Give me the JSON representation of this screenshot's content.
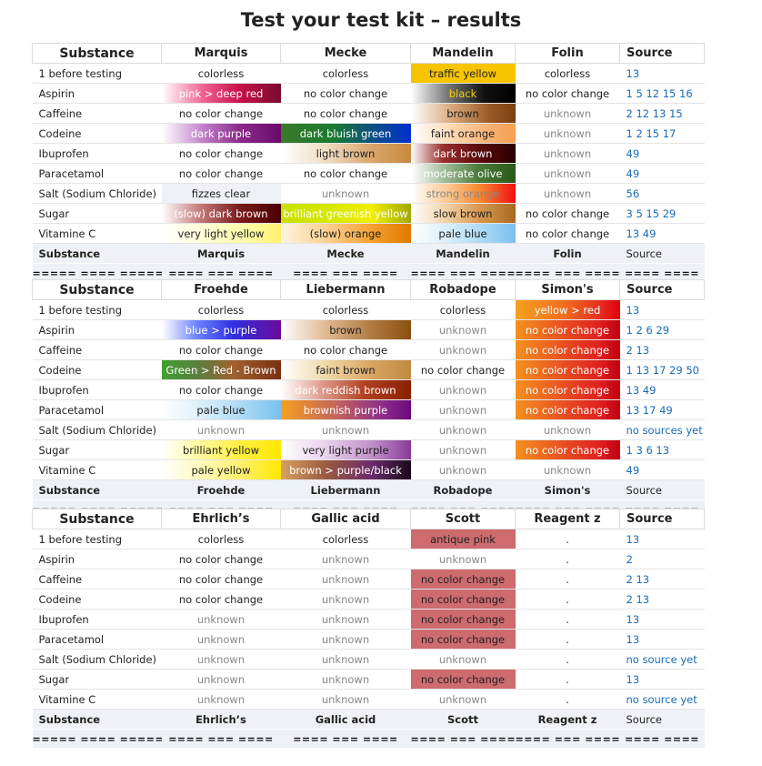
{
  "title": "Test your test kit – results",
  "substances": [
    "1 before testing",
    "Aspirin",
    "Caffeine",
    "Codeine",
    "Ibuprofen",
    "Paracetamol",
    "Salt (Sodium Chloride)",
    "Sugar",
    "Vitamine C"
  ],
  "tables": [
    {
      "headers": [
        "Substance",
        "Marquis",
        "Mecke",
        "Mandelin",
        "Folin",
        "Source"
      ],
      "footer": [
        "Substance",
        "Marquis",
        "Mecke",
        "Mandelin",
        "Folin",
        "Source"
      ],
      "separator": [
        "===== ==== =====",
        "==== === ====",
        "==== === ====",
        "==== === ====",
        "==== === ====",
        "==== ===="
      ],
      "rows": [
        [
          "1 before testing",
          "colorless",
          "colorless",
          "traffic yellow",
          "colorless",
          "13"
        ],
        [
          "Aspirin",
          "pink > deep red",
          "no color change",
          "black",
          "no color change",
          "1 5 12 15 16"
        ],
        [
          "Caffeine",
          "no color change",
          "no color change",
          "brown",
          "unknown",
          "2 12 13 15"
        ],
        [
          "Codeine",
          "dark purple",
          "dark bluish green",
          "faint orange",
          "unknown",
          "1 2 15 17"
        ],
        [
          "Ibuprofen",
          "no color change",
          "light brown",
          "dark brown",
          "unknown",
          "49"
        ],
        [
          "Paracetamol",
          "no color change",
          "no color change",
          "moderate olive",
          "unknown",
          "49"
        ],
        [
          "Salt (Sodium Chloride)",
          "fizzes clear",
          "unknown",
          "strong orange",
          "unknown",
          "56"
        ],
        [
          "Sugar",
          "(slow) dark brown",
          "brilliant greenish yellow",
          "slow brown",
          "no color change",
          "3 5 15 29"
        ],
        [
          "Vitamine C",
          "very light yellow",
          "(slow) orange",
          "pale blue",
          "no color change",
          "13 49"
        ]
      ]
    },
    {
      "headers": [
        "Substance",
        "Froehde",
        "Liebermann",
        "Robadope",
        "Simon's",
        "Source"
      ],
      "footer": [
        "Substance",
        "Froehde",
        "Liebermann",
        "Robadope",
        "Simon's",
        "Source"
      ],
      "separator": [
        "===== ==== =====",
        "==== === ====",
        "==== === ====",
        "==== === ====",
        "==== === ====",
        "==== ===="
      ],
      "rows": [
        [
          "1 before testing",
          "colorless",
          "colorless",
          "colorless",
          "yellow > red",
          "13"
        ],
        [
          "Aspirin",
          "blue > purple",
          "brown",
          "unknown",
          "no color change",
          "1 2 6 29"
        ],
        [
          "Caffeine",
          "no color change",
          "no color change",
          "unknown",
          "no color change",
          "2 13"
        ],
        [
          "Codeine",
          "Green > Red - Brown",
          "faint brown",
          "no color change",
          "no color change",
          "1 13 17 29 50"
        ],
        [
          "Ibuprofen",
          "no color change",
          "dark reddish brown",
          "unknown",
          "no color change",
          "13 49"
        ],
        [
          "Paracetamol",
          "pale blue",
          "brownish purple",
          "unknown",
          "no color change",
          "13 17 49"
        ],
        [
          "Salt (Sodium Chloride)",
          "unknown",
          "unknown",
          "unknown",
          "unknown",
          "no sources yet"
        ],
        [
          "Sugar",
          "brilliant yellow",
          "very light purple",
          "unknown",
          "no color change",
          "1 3 6 13"
        ],
        [
          "Vitamine C",
          "pale yellow",
          "brown > purple/black",
          "unknown",
          "unknown",
          "49"
        ]
      ]
    },
    {
      "headers": [
        "Substance",
        "Ehrlich’s",
        "Gallic acid",
        "Scott",
        "Reagent z",
        "Source"
      ],
      "footer": [
        "Substance",
        "Ehrlich’s",
        "Gallic acid",
        "Scott",
        "Reagent z",
        "Source"
      ],
      "separator": [
        "===== ==== =====",
        "==== === ====",
        "==== === ====",
        "==== === ====",
        "==== === ====",
        "==== ===="
      ],
      "rows": [
        [
          "1 before testing",
          "colorless",
          "colorless",
          "antique pink",
          ".",
          "13"
        ],
        [
          "Aspirin",
          "no color change",
          "unknown",
          "unknown",
          ".",
          "2"
        ],
        [
          "Caffeine",
          "no color change",
          "unknown",
          "no color change",
          ".",
          "2 13"
        ],
        [
          "Codeine",
          "no color change",
          "unknown",
          "no color change",
          ".",
          "2 13"
        ],
        [
          "Ibuprofen",
          "unknown",
          "unknown",
          "no color change",
          ".",
          "13"
        ],
        [
          "Paracetamol",
          "unknown",
          "unknown",
          "no color change",
          ".",
          "13"
        ],
        [
          "Salt (Sodium Chloride)",
          "unknown",
          "unknown",
          "unknown",
          ".",
          "no source yet"
        ],
        [
          "Sugar",
          "unknown",
          "unknown",
          "no color change",
          ".",
          "13"
        ],
        [
          "Vitamine C",
          "unknown",
          "unknown",
          "unknown",
          ".",
          "no source yet"
        ]
      ]
    }
  ],
  "colors": {
    "link": "#1a6bb5",
    "unknown": "#888888",
    "footer_bg": "#eef1f8",
    "scott_pink": "#cd6b6f"
  }
}
